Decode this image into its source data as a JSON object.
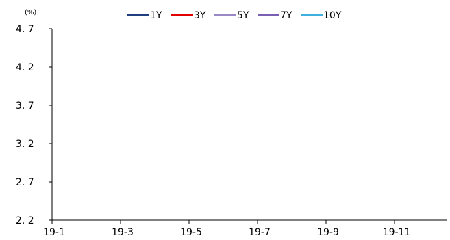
{
  "chart_data": {
    "type": "line",
    "unit_label": "(%)",
    "y_tick_labels": [
      "2. 2",
      "2. 7",
      "3. 2",
      "3. 7",
      "4. 2",
      "4. 7"
    ],
    "y_ticks": [
      2.2,
      2.7,
      3.2,
      3.7,
      4.2,
      4.7
    ],
    "ylim": [
      2.2,
      4.7
    ],
    "x_tick_labels": [
      "19-1",
      "19-3",
      "19-5",
      "19-7",
      "19-9",
      "19-11"
    ],
    "legend_position": "top-center",
    "grid": false,
    "series": [
      {
        "name": "1Y",
        "color": "#1f3f7f",
        "values": []
      },
      {
        "name": "3Y",
        "color": "#e00000",
        "values": []
      },
      {
        "name": "5Y",
        "color": "#9b88c7",
        "values": []
      },
      {
        "name": "7Y",
        "color": "#7a5fb3",
        "values": []
      },
      {
        "name": "10Y",
        "color": "#3fb0e0",
        "values": []
      }
    ]
  }
}
